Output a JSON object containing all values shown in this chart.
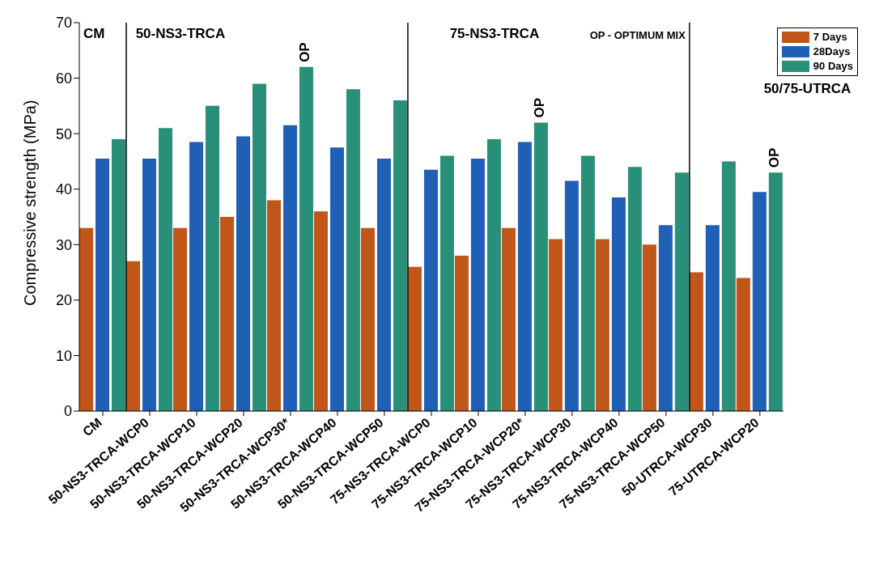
{
  "chart_data": {
    "type": "bar",
    "ylabel": "Compressive strength (MPa)",
    "categories": [
      "CM",
      "50-NS3-TRCA-WCP0",
      "50-NS3-TRCA-WCP10",
      "50-NS3-TRCA-WCP20",
      "50-NS3-TRCA-WCP30*",
      "50-NS3-TRCA-WCP40",
      "50-NS3-TRCA-WCP50",
      "75-NS3-TRCA-WCP0",
      "75-NS3-TRCA-WCP10",
      "75-NS3-TRCA-WCP20*",
      "75-NS3-TRCA-WCP30",
      "75-NS3-TRCA-WCP40",
      "75-NS3-TRCA-WCP50",
      "50-UTRCA-WCP30",
      "75-UTRCA-WCP20"
    ],
    "series": [
      {
        "name": "7 Days",
        "color": "#c0561a",
        "values": [
          33,
          27,
          33,
          35,
          38,
          36,
          33,
          26,
          28,
          33,
          31,
          31,
          30,
          25,
          24
        ]
      },
      {
        "name": "28Days",
        "color": "#1f5fb5",
        "values": [
          45.5,
          45.5,
          48.5,
          49.5,
          51.5,
          47.5,
          45.5,
          43.5,
          45.5,
          48.5,
          41.5,
          38.5,
          33.5,
          33.5,
          39.5
        ]
      },
      {
        "name": "90 Days",
        "color": "#2a8f78",
        "values": [
          49,
          51,
          55,
          59,
          62,
          58,
          56,
          46,
          49,
          52,
          46,
          44,
          43,
          45,
          43
        ]
      }
    ],
    "ylim": [
      0,
      70
    ],
    "yticks": [
      0,
      10,
      20,
      30,
      40,
      50,
      60,
      70
    ],
    "grid": false,
    "legend": "top right",
    "annotations": [
      "CM",
      "50-NS3-TRCA",
      "75-NS3-TRCA",
      "50/75-UTRCA",
      "OP - OPTIMUM MIX",
      "OP",
      "OP",
      "OP"
    ]
  }
}
